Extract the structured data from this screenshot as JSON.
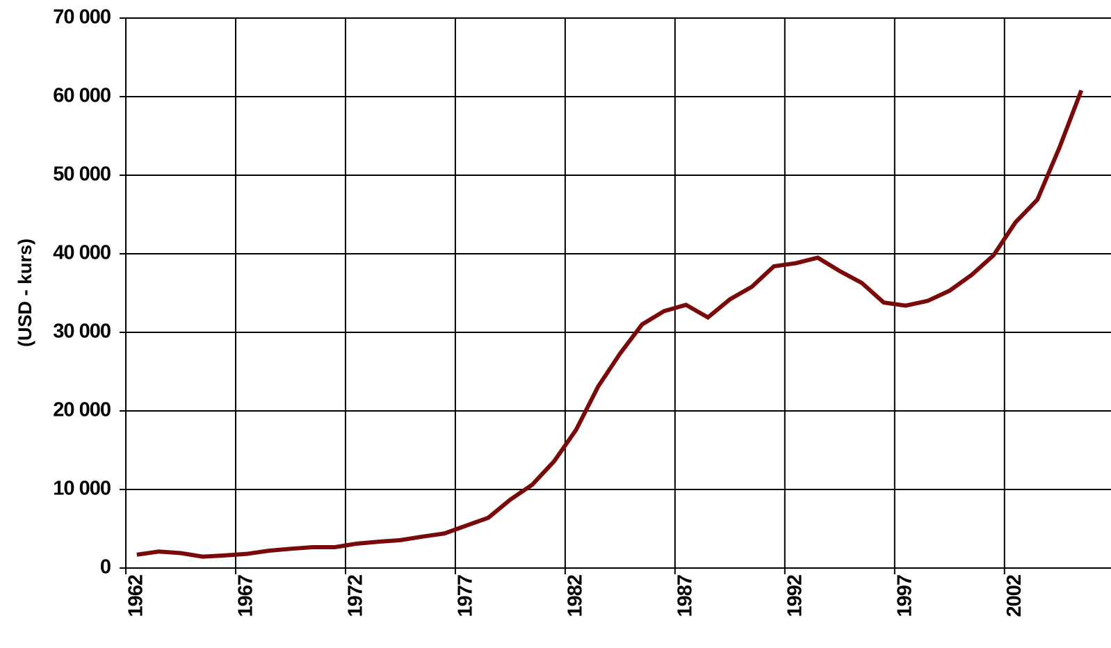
{
  "chart_data": {
    "type": "line",
    "y_label": "(USD - kurs)",
    "categories": [
      "1962",
      null,
      null,
      null,
      null,
      "1967",
      null,
      null,
      null,
      null,
      "1972",
      null,
      null,
      null,
      null,
      "1977",
      null,
      null,
      null,
      null,
      "1982",
      null,
      null,
      null,
      null,
      "1987",
      null,
      null,
      null,
      null,
      "1992",
      null,
      null,
      null,
      null,
      "1997",
      null,
      null,
      null,
      null,
      "2002",
      null,
      null,
      null
    ],
    "series": [
      {
        "color": "#7a0a0a",
        "values": [
          1700,
          2100,
          1900,
          1450,
          1600,
          1800,
          2200,
          2450,
          2650,
          2650,
          3100,
          3350,
          3550,
          4000,
          4400,
          5400,
          6400,
          8700,
          10600,
          13600,
          17600,
          23100,
          27300,
          31000,
          32700,
          33500,
          31900,
          34200,
          35800,
          38400,
          38800,
          39500,
          37800,
          36300,
          33800,
          33400,
          34000,
          35300,
          37300,
          39800,
          44000,
          46900,
          53500,
          60800
        ]
      }
    ],
    "ylim": [
      0,
      70000
    ],
    "yticks": [
      0,
      {
        "value": 10000,
        "label": "10 000"
      },
      {
        "value": 20000,
        "label": "20 000"
      },
      {
        "value": 30000,
        "label": "30 000"
      },
      {
        "value": 40000,
        "label": "40 000"
      },
      {
        "value": 50000,
        "label": "50 000"
      },
      {
        "value": 60000,
        "label": "60 000"
      },
      {
        "value": 70000,
        "label": "70 000"
      }
    ],
    "grid": true
  }
}
